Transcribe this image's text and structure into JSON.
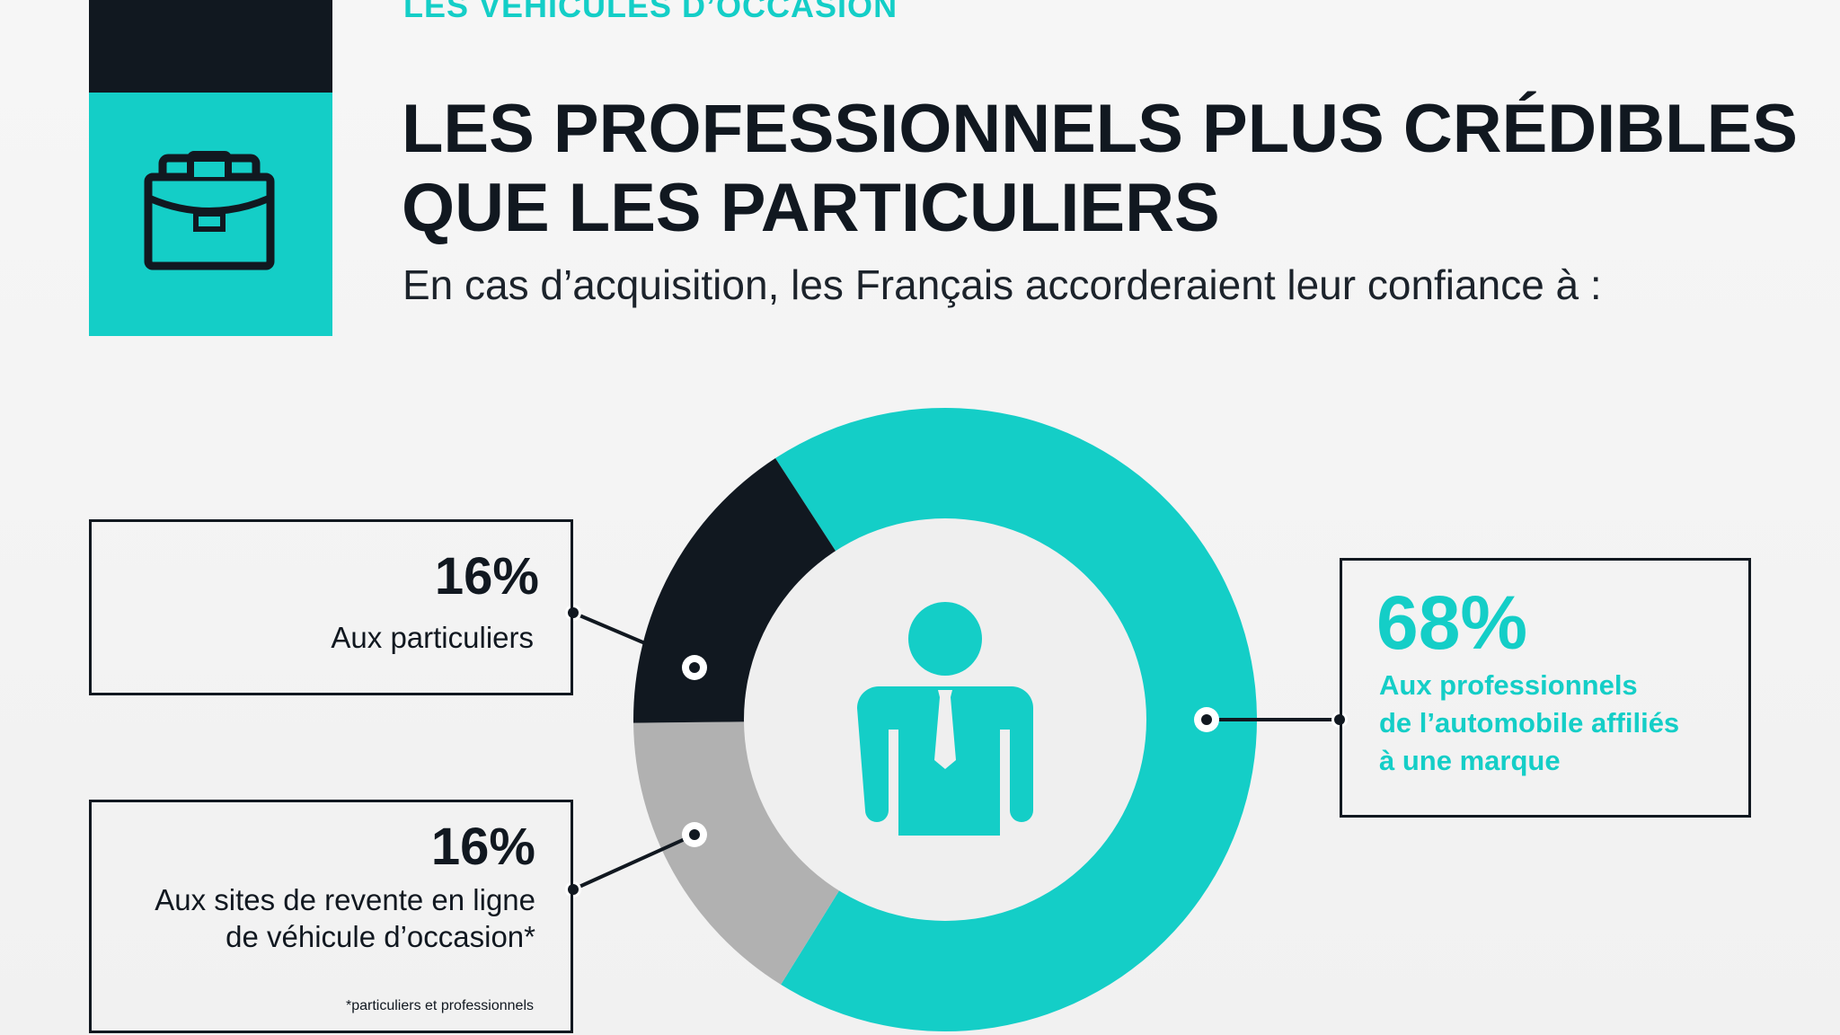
{
  "header": {
    "kicker": "LES VÉHICULES D’OCCASION",
    "title_line1": "LES PROFESSIONNELS PLUS CRÉDIBLES",
    "title_line2": "QUE LES PARTICULIERS",
    "subtitle": "En cas d’acquisition, les Français accorderaient leur confiance à :",
    "icon": "briefcase-icon"
  },
  "center_icon": "businessman-icon",
  "colors": {
    "teal": "#14cec7",
    "dark": "#111820",
    "grey": "#b1b1b1",
    "inner": "#efefef"
  },
  "chart_data": {
    "type": "pie",
    "donut": true,
    "slices": [
      {
        "value": 68,
        "display": "68%",
        "color": "#14cec7"
      },
      {
        "value": 16,
        "display": "16%",
        "color": "#b1b1b1"
      },
      {
        "value": 16,
        "display": "16%",
        "color": "#111820"
      }
    ],
    "labels": [
      "Aux professionnels de l’automobile affiliés à une marque",
      "Aux sites de revente en ligne de véhicule d’occasion*",
      "Aux particuliers"
    ]
  },
  "callouts": {
    "particuliers": {
      "pct": "16%",
      "label": "Aux particuliers"
    },
    "sites": {
      "pct": "16%",
      "label_line1": "Aux sites de revente en ligne",
      "label_line2": "de véhicule d’occasion*",
      "note": "*particuliers et professionnels"
    },
    "professionnels": {
      "pct": "68%",
      "label_line1": "Aux professionnels",
      "label_line2": "de l’automobile affiliés",
      "label_line3": "à une marque"
    }
  }
}
